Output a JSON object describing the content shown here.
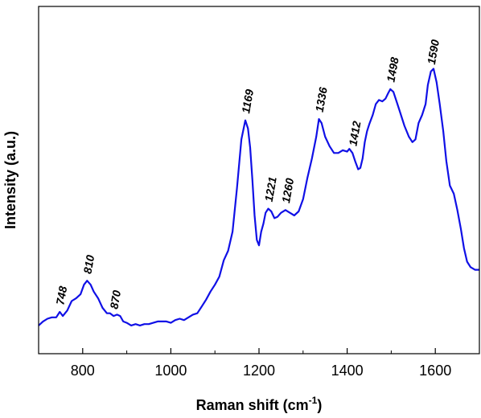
{
  "chart_data": {
    "type": "line",
    "title": "",
    "xlabel": "Raman shift (cm",
    "xlabel_sup": "-1",
    "xlabel_close": ")",
    "ylabel": "Intensity (a.u.)",
    "xlim": [
      700,
      1700
    ],
    "ylim": [
      0,
      1
    ],
    "x_ticks": [
      800,
      1000,
      1200,
      1400,
      1600
    ],
    "y_ticks_labeled": false,
    "grid": false,
    "legend": "none",
    "line_color": "#1010e6",
    "series": [
      {
        "x": [
          700,
          710,
          720,
          730,
          740,
          748,
          755,
          765,
          775,
          785,
          795,
          803,
          810,
          818,
          825,
          835,
          845,
          855,
          862,
          870,
          878,
          885,
          892,
          900,
          910,
          920,
          930,
          940,
          950,
          960,
          970,
          980,
          990,
          1000,
          1010,
          1020,
          1030,
          1040,
          1050,
          1060,
          1070,
          1080,
          1090,
          1100,
          1110,
          1120,
          1130,
          1140,
          1150,
          1160,
          1169,
          1175,
          1180,
          1185,
          1190,
          1195,
          1200,
          1205,
          1210,
          1215,
          1221,
          1228,
          1235,
          1242,
          1250,
          1260,
          1270,
          1280,
          1290,
          1300,
          1310,
          1320,
          1330,
          1336,
          1342,
          1350,
          1360,
          1370,
          1380,
          1390,
          1400,
          1405,
          1412,
          1418,
          1425,
          1430,
          1435,
          1440,
          1445,
          1450,
          1458,
          1465,
          1472,
          1480,
          1487,
          1493,
          1498,
          1505,
          1512,
          1520,
          1530,
          1540,
          1548,
          1555,
          1562,
          1570,
          1578,
          1583,
          1590,
          1596,
          1603,
          1610,
          1618,
          1625,
          1633,
          1642,
          1650,
          1658,
          1665,
          1672,
          1680,
          1690,
          1700
        ],
        "y": [
          0.015,
          0.03,
          0.04,
          0.045,
          0.045,
          0.065,
          0.05,
          0.07,
          0.105,
          0.115,
          0.13,
          0.165,
          0.18,
          0.165,
          0.14,
          0.115,
          0.08,
          0.06,
          0.06,
          0.05,
          0.055,
          0.05,
          0.03,
          0.025,
          0.015,
          0.02,
          0.015,
          0.02,
          0.02,
          0.025,
          0.03,
          0.03,
          0.03,
          0.025,
          0.035,
          0.04,
          0.035,
          0.045,
          0.055,
          0.06,
          0.085,
          0.11,
          0.14,
          0.165,
          0.195,
          0.255,
          0.29,
          0.36,
          0.52,
          0.7,
          0.77,
          0.74,
          0.67,
          0.55,
          0.42,
          0.33,
          0.31,
          0.36,
          0.39,
          0.43,
          0.445,
          0.435,
          0.41,
          0.415,
          0.43,
          0.44,
          0.43,
          0.42,
          0.435,
          0.48,
          0.56,
          0.63,
          0.71,
          0.775,
          0.76,
          0.71,
          0.675,
          0.65,
          0.65,
          0.66,
          0.655,
          0.665,
          0.65,
          0.62,
          0.59,
          0.595,
          0.63,
          0.69,
          0.73,
          0.755,
          0.79,
          0.83,
          0.845,
          0.84,
          0.85,
          0.87,
          0.885,
          0.875,
          0.84,
          0.8,
          0.75,
          0.71,
          0.69,
          0.7,
          0.76,
          0.79,
          0.83,
          0.9,
          0.95,
          0.96,
          0.91,
          0.83,
          0.73,
          0.62,
          0.53,
          0.5,
          0.44,
          0.37,
          0.3,
          0.25,
          0.23,
          0.22,
          0.22
        ]
      }
    ],
    "annotations": [
      {
        "x": 748,
        "text": "748"
      },
      {
        "x": 810,
        "text": "810"
      },
      {
        "x": 870,
        "text": "870"
      },
      {
        "x": 1169,
        "text": "1169"
      },
      {
        "x": 1221,
        "text": "1221"
      },
      {
        "x": 1260,
        "text": "1260"
      },
      {
        "x": 1336,
        "text": "1336"
      },
      {
        "x": 1412,
        "text": "1412"
      },
      {
        "x": 1498,
        "text": "1498"
      },
      {
        "x": 1590,
        "text": "1590"
      }
    ]
  }
}
